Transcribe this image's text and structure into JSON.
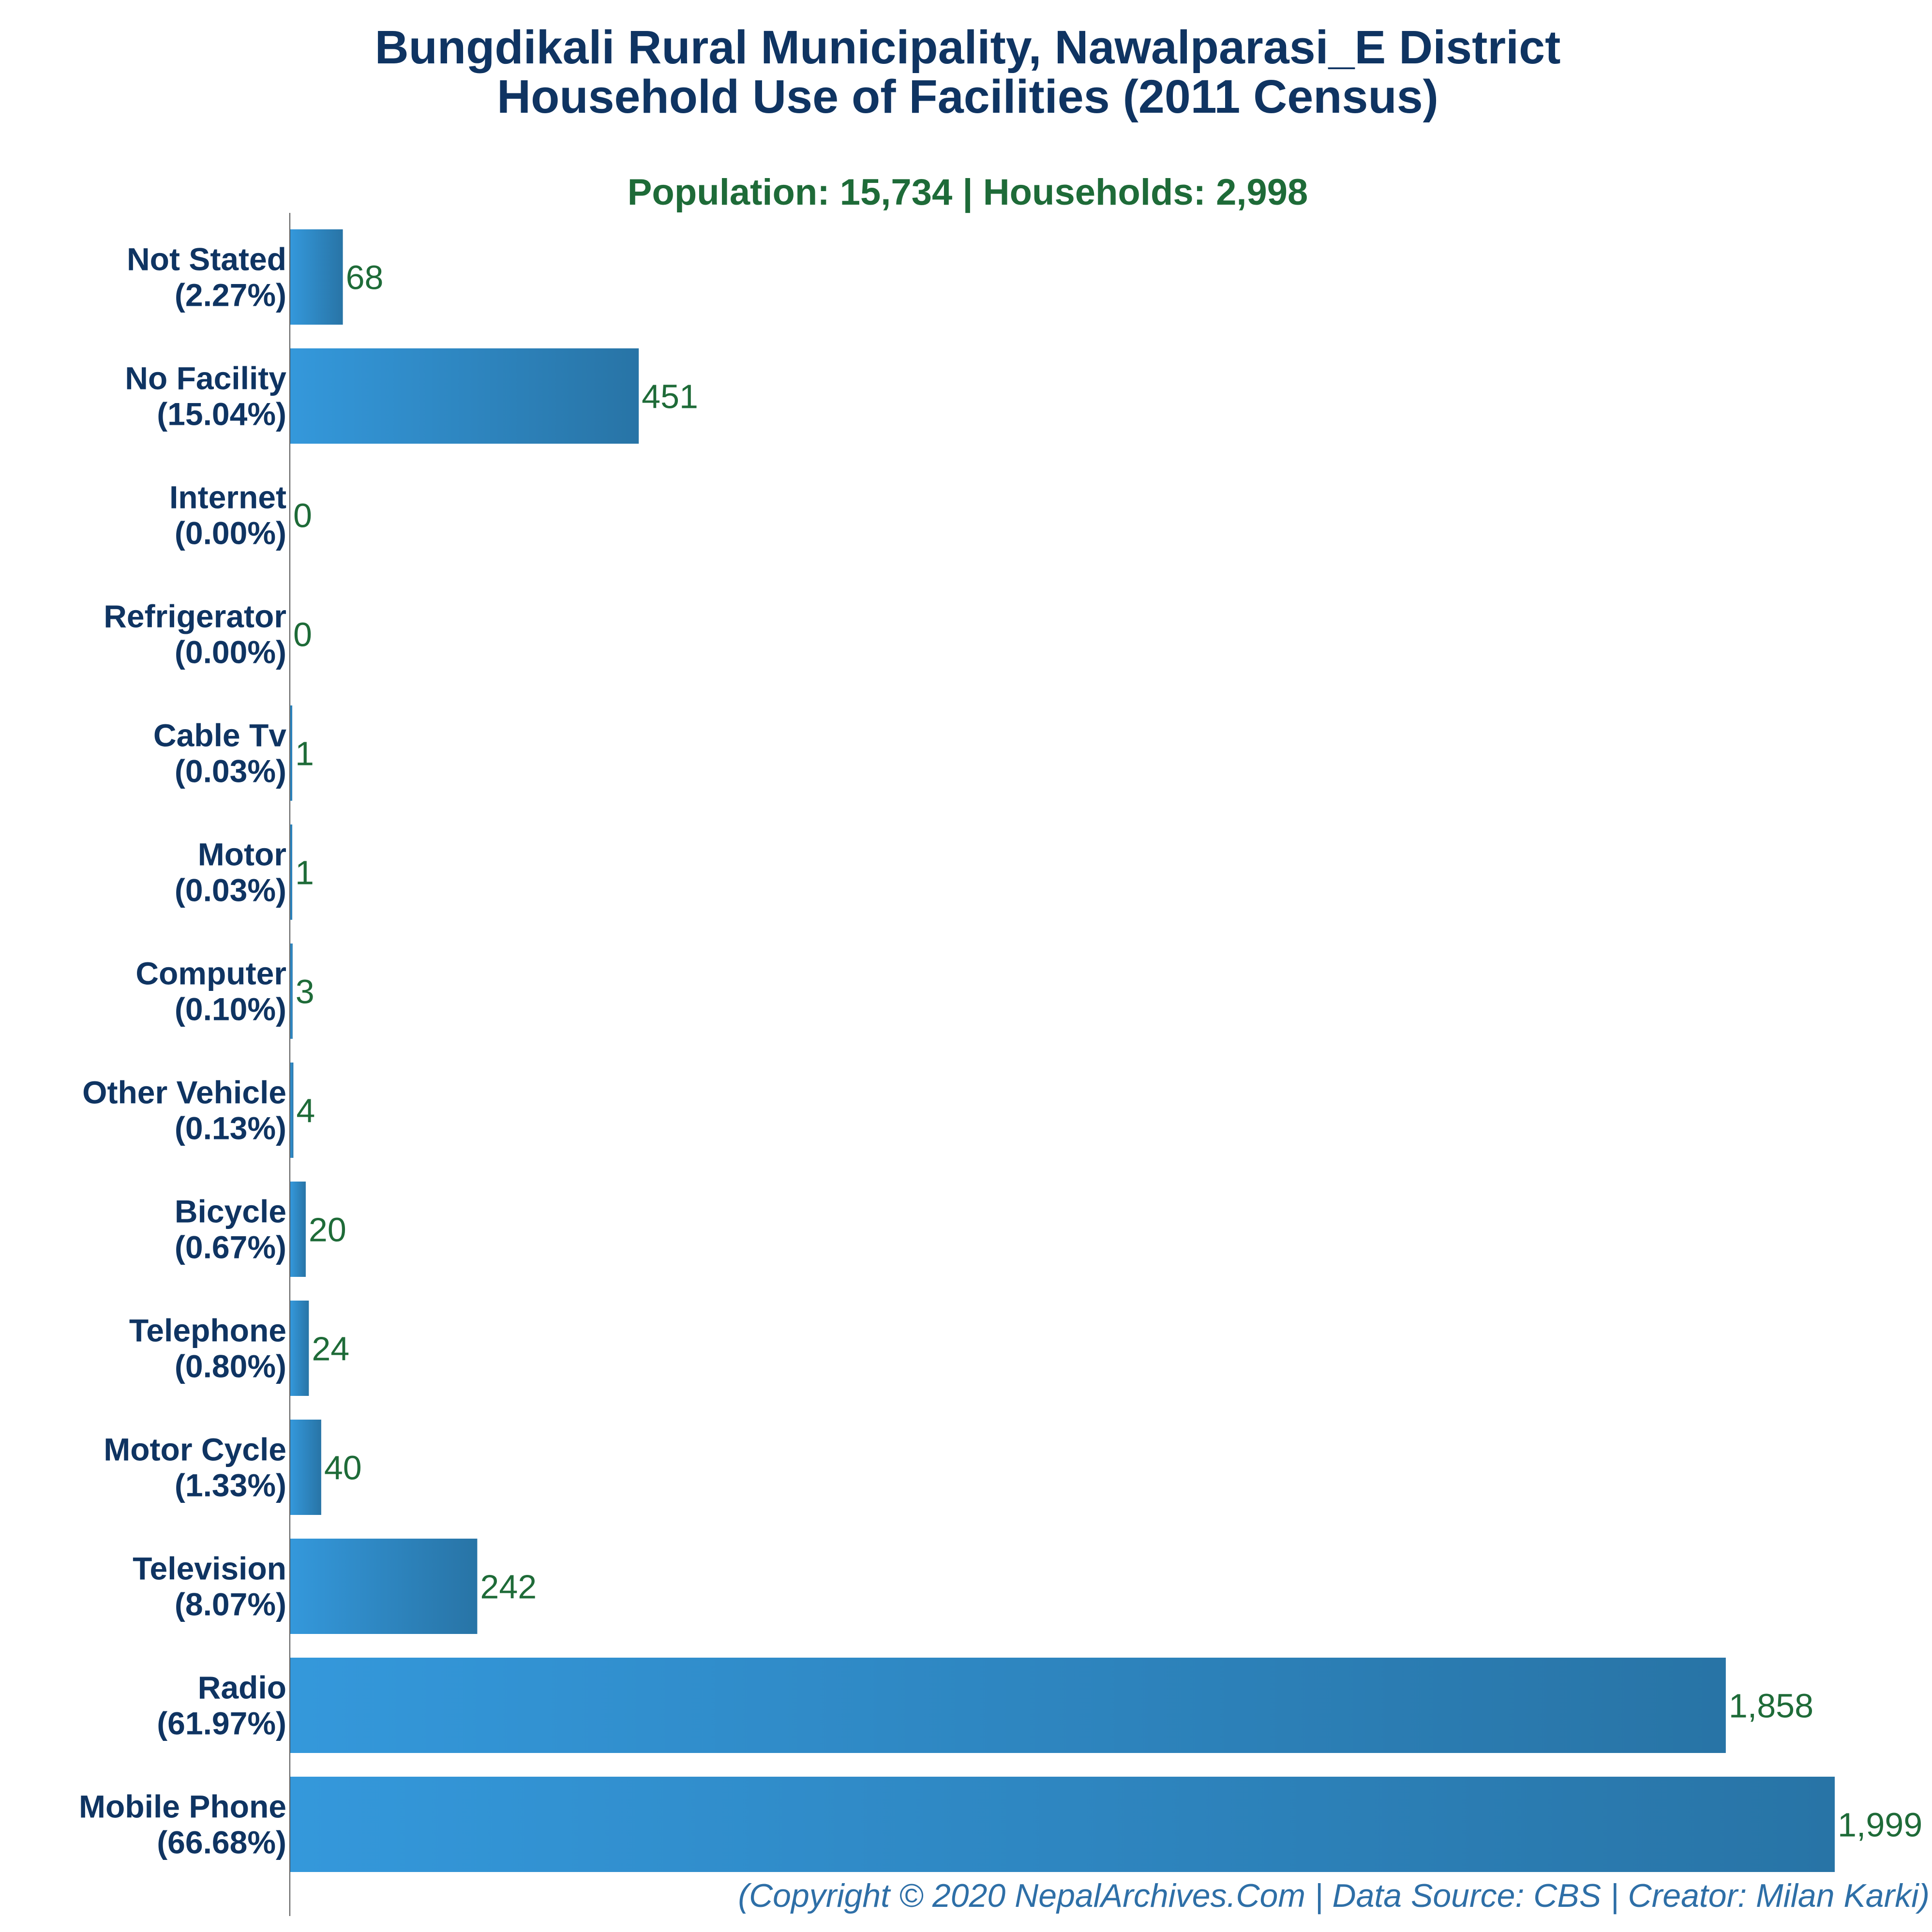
{
  "title_line1": "Bungdikali Rural Municipality, Nawalparasi_E District",
  "title_line2": "Household Use of Facilities (2011 Census)",
  "subtitle": "Population: 15,734 | Households: 2,998",
  "footer": "(Copyright © 2020 NepalArchives.Com | Data Source: CBS | Creator: Milan Karki)",
  "colors": {
    "bar_light": "#3498db",
    "bar_dark": "#2874a6",
    "label": "#0f3462",
    "value": "#1e6b38"
  },
  "chart_data": {
    "type": "bar",
    "orientation": "horizontal",
    "categories": [
      "Not Stated",
      "No Facility",
      "Internet",
      "Refrigerator",
      "Cable Tv",
      "Motor",
      "Computer",
      "Other Vehicle",
      "Bicycle",
      "Telephone",
      "Motor Cycle",
      "Television",
      "Radio",
      "Mobile Phone"
    ],
    "percent_labels": [
      "(2.27%)",
      "(15.04%)",
      "(0.00%)",
      "(0.00%)",
      "(0.03%)",
      "(0.03%)",
      "(0.10%)",
      "(0.13%)",
      "(0.67%)",
      "(0.80%)",
      "(1.33%)",
      "(8.07%)",
      "(61.97%)",
      "(66.68%)"
    ],
    "values": [
      68,
      451,
      0,
      0,
      1,
      1,
      3,
      4,
      20,
      24,
      40,
      242,
      1858,
      1999
    ],
    "value_labels": [
      "68",
      "451",
      "0",
      "0",
      "1",
      "1",
      "3",
      "4",
      "20",
      "24",
      "40",
      "242",
      "1,858",
      "1,999"
    ],
    "xlim": [
      0,
      1999
    ]
  }
}
